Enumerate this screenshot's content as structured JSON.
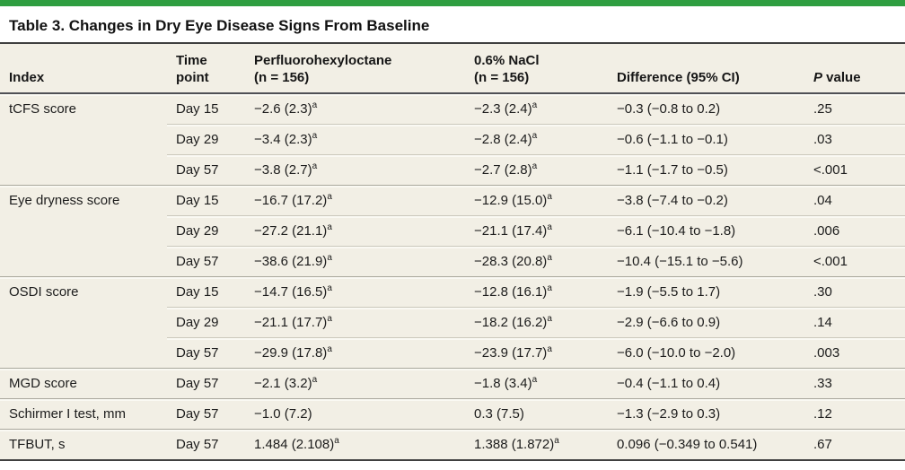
{
  "title": "Table 3. Changes in Dry Eye Disease Signs From Baseline",
  "colors": {
    "accent_bar": "#2f9e41",
    "table_background": "#f2efe5",
    "outer_rule": "#404040",
    "header_rule": "#4f5055",
    "section_divider": "#a9a79c",
    "row_divider": "#cbc8bc"
  },
  "table": {
    "columns": [
      {
        "id": "index",
        "lines": [
          "Index"
        ]
      },
      {
        "id": "time",
        "lines": [
          "Time",
          "point"
        ]
      },
      {
        "id": "pfh",
        "lines": [
          "Perfluorohexyloctane",
          "(n = 156)"
        ]
      },
      {
        "id": "nacl",
        "lines": [
          "0.6% NaCl",
          "(n = 156)"
        ]
      },
      {
        "id": "diff",
        "lines": [
          "Difference (95% CI)"
        ]
      },
      {
        "id": "p",
        "italic_lead": "P",
        "rest": " value"
      }
    ],
    "footnote_marker": "a",
    "rows": [
      {
        "index": "tCFS score",
        "rowspan": 3,
        "time": "Day 15",
        "pfh": "−2.6 (2.3)",
        "pfh_sup": "a",
        "nacl": "−2.3 (2.4)",
        "nacl_sup": "a",
        "diff": "−0.3 (−0.8 to 0.2)",
        "p": ".25"
      },
      {
        "index": null,
        "time": "Day 29",
        "pfh": "−3.4 (2.3)",
        "pfh_sup": "a",
        "nacl": "−2.8 (2.4)",
        "nacl_sup": "a",
        "diff": "−0.6 (−1.1 to −0.1)",
        "p": ".03"
      },
      {
        "index": null,
        "time": "Day 57",
        "pfh": "−3.8 (2.7)",
        "pfh_sup": "a",
        "nacl": "−2.7 (2.8)",
        "nacl_sup": "a",
        "diff": "−1.1 (−1.7 to −0.5)",
        "p": "<.001"
      },
      {
        "index": "Eye dryness score",
        "rowspan": 3,
        "time": "Day 15",
        "pfh": "−16.7 (17.2)",
        "pfh_sup": "a",
        "nacl": "−12.9 (15.0)",
        "nacl_sup": "a",
        "diff": "−3.8 (−7.4 to −0.2)",
        "p": ".04"
      },
      {
        "index": null,
        "time": "Day 29",
        "pfh": "−27.2 (21.1)",
        "pfh_sup": "a",
        "nacl": "−21.1 (17.4)",
        "nacl_sup": "a",
        "diff": "−6.1 (−10.4 to −1.8)",
        "p": ".006"
      },
      {
        "index": null,
        "time": "Day 57",
        "pfh": "−38.6 (21.9)",
        "pfh_sup": "a",
        "nacl": "−28.3 (20.8)",
        "nacl_sup": "a",
        "diff": "−10.4 (−15.1 to −5.6)",
        "p": "<.001"
      },
      {
        "index": "OSDI score",
        "rowspan": 3,
        "time": "Day 15",
        "pfh": "−14.7 (16.5)",
        "pfh_sup": "a",
        "nacl": "−12.8 (16.1)",
        "nacl_sup": "a",
        "diff": "−1.9 (−5.5 to 1.7)",
        "p": ".30"
      },
      {
        "index": null,
        "time": "Day 29",
        "pfh": "−21.1 (17.7)",
        "pfh_sup": "a",
        "nacl": "−18.2 (16.2)",
        "nacl_sup": "a",
        "diff": "−2.9 (−6.6 to 0.9)",
        "p": ".14"
      },
      {
        "index": null,
        "time": "Day 57",
        "pfh": "−29.9 (17.8)",
        "pfh_sup": "a",
        "nacl": "−23.9 (17.7)",
        "nacl_sup": "a",
        "diff": "−6.0 (−10.0 to −2.0)",
        "p": ".003"
      },
      {
        "index": "MGD score",
        "rowspan": 1,
        "time": "Day 57",
        "pfh": "−2.1 (3.2)",
        "pfh_sup": "a",
        "nacl": "−1.8 (3.4)",
        "nacl_sup": "a",
        "diff": "−0.4 (−1.1 to 0.4)",
        "p": ".33"
      },
      {
        "index": "Schirmer I test, mm",
        "rowspan": 1,
        "time": "Day 57",
        "pfh": "−1.0 (7.2)",
        "pfh_sup": null,
        "nacl": "0.3 (7.5)",
        "nacl_sup": null,
        "diff": "−1.3 (−2.9 to 0.3)",
        "p": ".12"
      },
      {
        "index": "TFBUT, s",
        "rowspan": 1,
        "time": "Day 57",
        "pfh": "1.484 (2.108)",
        "pfh_sup": "a",
        "nacl": "1.388 (1.872)",
        "nacl_sup": "a",
        "diff": "0.096 (−0.349 to 0.541)",
        "p": ".67"
      }
    ]
  }
}
